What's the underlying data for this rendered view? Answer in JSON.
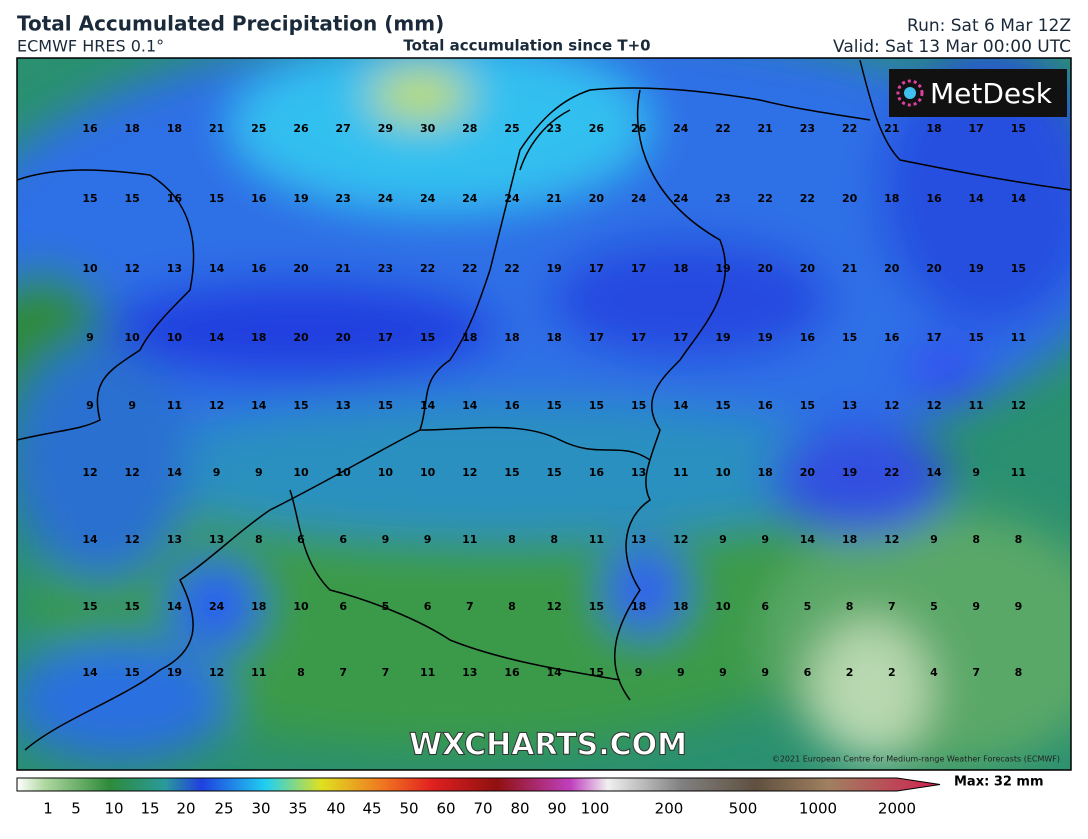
{
  "header": {
    "title": "Total Accumulated Precipitation (mm)",
    "model": "ECMWF HRES 0.1°",
    "subtitle": "Total accumulation since T+0",
    "run": "Run: Sat 6 Mar 12Z",
    "valid": "Valid: Sat 13 Mar 00:00 UTC"
  },
  "map": {
    "values": [
      [
        16,
        18,
        18,
        21,
        25,
        26,
        27,
        29,
        30,
        28,
        25,
        23,
        26,
        26,
        24,
        22,
        21,
        23,
        22,
        21,
        18,
        17,
        15
      ],
      [
        15,
        15,
        16,
        15,
        16,
        19,
        23,
        24,
        24,
        24,
        24,
        21,
        20,
        24,
        24,
        23,
        22,
        22,
        20,
        18,
        16,
        14,
        14
      ],
      [
        10,
        12,
        13,
        14,
        16,
        20,
        21,
        23,
        22,
        22,
        22,
        19,
        17,
        17,
        18,
        19,
        20,
        20,
        21,
        20,
        20,
        19,
        15
      ],
      [
        9,
        10,
        10,
        14,
        18,
        20,
        20,
        17,
        15,
        18,
        18,
        18,
        17,
        17,
        17,
        19,
        19,
        16,
        15,
        16,
        17,
        15,
        11
      ],
      [
        9,
        9,
        11,
        12,
        14,
        15,
        13,
        15,
        14,
        14,
        16,
        15,
        15,
        15,
        14,
        15,
        16,
        15,
        13,
        12,
        12,
        11,
        12
      ],
      [
        12,
        12,
        14,
        9,
        9,
        10,
        10,
        10,
        10,
        12,
        15,
        15,
        16,
        13,
        11,
        10,
        18,
        20,
        19,
        22,
        14,
        9,
        11
      ],
      [
        14,
        12,
        13,
        13,
        8,
        6,
        6,
        9,
        9,
        11,
        8,
        8,
        11,
        13,
        12,
        9,
        9,
        14,
        18,
        12,
        9,
        8,
        8
      ],
      [
        15,
        15,
        14,
        24,
        18,
        10,
        6,
        5,
        6,
        7,
        8,
        12,
        15,
        18,
        18,
        10,
        6,
        5,
        8,
        7,
        5,
        9,
        9
      ],
      [
        14,
        15,
        19,
        12,
        11,
        8,
        7,
        7,
        11,
        13,
        16,
        14,
        15,
        9,
        9,
        9,
        9,
        6,
        2,
        2,
        4,
        7,
        8
      ]
    ],
    "logo": "MetDesk",
    "watermark": "WXCHARTS.COM",
    "copyright": "©2021 European Centre for Medium-range Weather Forecasts (ECMWF)"
  },
  "legend": {
    "labels": [
      "1",
      "5",
      "10",
      "15",
      "20",
      "25",
      "30",
      "35",
      "40",
      "45",
      "50",
      "60",
      "70",
      "80",
      "90",
      "100",
      "200",
      "500",
      "1000",
      "2000"
    ],
    "max": "Max: 32 mm"
  }
}
